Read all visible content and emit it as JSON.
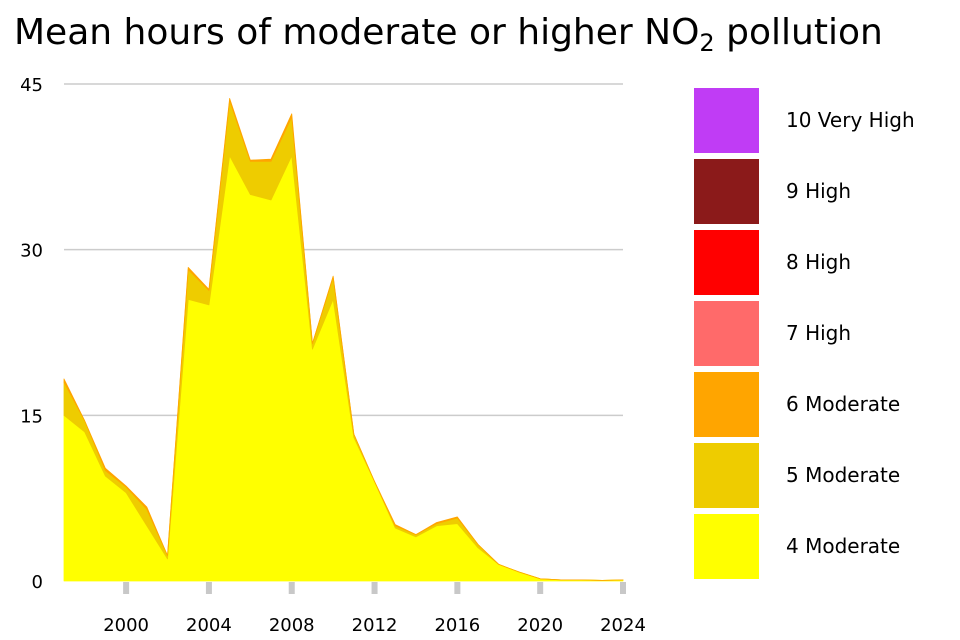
{
  "chart_data": {
    "type": "area",
    "stacked": true,
    "title_main": "Mean hours of moderate or higher NO",
    "title_sub": "2",
    "title_tail": " pollution",
    "xlabel": "",
    "ylabel": "",
    "xlim": [
      1997,
      2024
    ],
    "ylim": [
      0,
      45
    ],
    "yticks": [
      0,
      15,
      30,
      45
    ],
    "xticks": [
      2000,
      2004,
      2008,
      2012,
      2016,
      2020,
      2024
    ],
    "grid": true,
    "legend_position": "right",
    "x": [
      1997,
      1998,
      1999,
      2000,
      2001,
      2002,
      2003,
      2004,
      2005,
      2006,
      2007,
      2008,
      2009,
      2010,
      2011,
      2012,
      2013,
      2014,
      2015,
      2016,
      2017,
      2018,
      2019,
      2020,
      2021,
      2022,
      2023,
      2024
    ],
    "series": [
      {
        "name": "4 Moderate",
        "color": "#ffff00",
        "values": [
          15,
          13.5,
          9.5,
          8,
          5,
          2,
          25.5,
          25,
          38.5,
          35,
          34.5,
          38.5,
          21,
          25.5,
          13,
          9,
          4.8,
          4,
          5,
          5.2,
          3,
          1.5,
          0.8,
          0.2,
          0.1,
          0.1,
          0.05,
          0.1
        ]
      },
      {
        "name": "5 Moderate",
        "color": "#eecc00",
        "values": [
          3,
          1,
          0.5,
          0.5,
          1.5,
          0.3,
          2.7,
          1.3,
          5,
          3,
          3.5,
          3.5,
          0.5,
          2,
          0.3,
          0,
          0.2,
          0.2,
          0.2,
          0.5,
          0.3,
          0,
          0,
          0,
          0,
          0,
          0,
          0
        ]
      },
      {
        "name": "6 Moderate",
        "color": "#ffa500",
        "values": [
          0.3,
          0,
          0.2,
          0.1,
          0.2,
          0,
          0.2,
          0.1,
          0.2,
          0.1,
          0.2,
          0.3,
          0,
          0.1,
          0,
          0,
          0.1,
          0,
          0.1,
          0.1,
          0,
          0,
          0,
          0,
          0,
          0,
          0,
          0
        ]
      },
      {
        "name": "7 High",
        "color": "#ff6a6a",
        "values": [
          0,
          0,
          0,
          0,
          0,
          0,
          0,
          0,
          0,
          0,
          0,
          0,
          0,
          0,
          0,
          0,
          0,
          0,
          0,
          0,
          0,
          0,
          0,
          0,
          0,
          0,
          0,
          0
        ]
      },
      {
        "name": "8 High",
        "color": "#ff0000",
        "values": [
          0,
          0,
          0,
          0,
          0,
          0,
          0,
          0,
          0,
          0,
          0,
          0,
          0,
          0,
          0,
          0,
          0,
          0,
          0,
          0,
          0,
          0,
          0,
          0,
          0,
          0,
          0,
          0
        ]
      },
      {
        "name": "9 High",
        "color": "#8b1a1a",
        "values": [
          0,
          0,
          0,
          0,
          0,
          0,
          0,
          0,
          0,
          0,
          0,
          0,
          0,
          0,
          0,
          0,
          0,
          0,
          0,
          0,
          0,
          0,
          0,
          0,
          0,
          0,
          0,
          0
        ]
      },
      {
        "name": "10 Very High",
        "color": "#c03cf5",
        "values": [
          0,
          0,
          0,
          0,
          0,
          0,
          0,
          0,
          0,
          0,
          0,
          0,
          0,
          0,
          0,
          0,
          0,
          0,
          0,
          0,
          0,
          0,
          0,
          0,
          0,
          0,
          0,
          0
        ]
      }
    ],
    "legend": [
      {
        "label": "10 Very High",
        "color": "#c03cf5"
      },
      {
        "label": "9 High",
        "color": "#8b1a1a"
      },
      {
        "label": "8 High",
        "color": "#ff0000"
      },
      {
        "label": "7 High",
        "color": "#ff6a6a"
      },
      {
        "label": "6 Moderate",
        "color": "#ffa500"
      },
      {
        "label": "5 Moderate",
        "color": "#eecc00"
      },
      {
        "label": "4 Moderate",
        "color": "#ffff00"
      }
    ]
  }
}
